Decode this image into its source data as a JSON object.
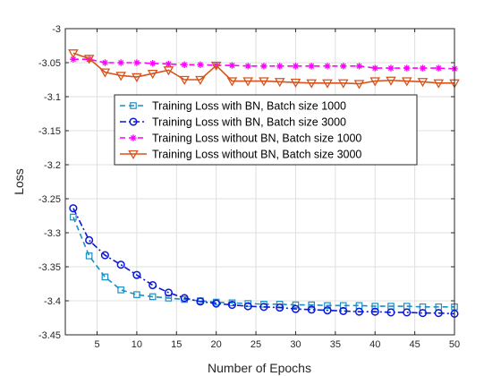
{
  "chart_data": {
    "type": "line",
    "title": "",
    "xlabel": "Number of Epochs",
    "ylabel": "Loss",
    "xlim": [
      1,
      50
    ],
    "ylim": [
      -3.45,
      -3.0
    ],
    "xticks": [
      5,
      10,
      15,
      20,
      25,
      30,
      35,
      40,
      45,
      50
    ],
    "xtick_labels": [
      "5",
      "10",
      "15",
      "20",
      "25",
      "30",
      "35",
      "40",
      "45",
      "50"
    ],
    "yticks": [
      -3.0,
      -3.05,
      -3.1,
      -3.15,
      -3.2,
      -3.25,
      -3.3,
      -3.35,
      -3.4,
      -3.45
    ],
    "ytick_labels": [
      "-3",
      "-3.05",
      "-3.1",
      "-3.15",
      "-3.2",
      "-3.25",
      "-3.3",
      "-3.35",
      "-3.4",
      "-3.45"
    ],
    "grid": true,
    "legend_position": "center",
    "x": [
      2,
      4,
      6,
      8,
      10,
      12,
      14,
      16,
      18,
      20,
      22,
      24,
      26,
      28,
      30,
      32,
      34,
      36,
      38,
      40,
      42,
      44,
      46,
      48,
      50
    ],
    "series": [
      {
        "name": "Training Loss with BN, Batch size 1000",
        "color": "#1b8fc4",
        "line_style": "dashed",
        "marker": "square",
        "values": [
          -3.277,
          -3.334,
          -3.365,
          -3.384,
          -3.391,
          -3.394,
          -3.396,
          -3.398,
          -3.4,
          -3.402,
          -3.403,
          -3.404,
          -3.405,
          -3.405,
          -3.406,
          -3.406,
          -3.407,
          -3.407,
          -3.407,
          -3.408,
          -3.408,
          -3.408,
          -3.409,
          -3.409,
          -3.409
        ]
      },
      {
        "name": "Training Loss with BN, Batch size 3000",
        "color": "#0a18d8",
        "line_style": "dashdot",
        "marker": "circle",
        "values": [
          -3.264,
          -3.311,
          -3.333,
          -3.347,
          -3.362,
          -3.377,
          -3.388,
          -3.396,
          -3.401,
          -3.404,
          -3.406,
          -3.408,
          -3.409,
          -3.41,
          -3.412,
          -3.413,
          -3.414,
          -3.415,
          -3.416,
          -3.416,
          -3.417,
          -3.417,
          -3.418,
          -3.418,
          -3.419
        ]
      },
      {
        "name": "Training Loss without BN, Batch size 1000",
        "color": "#ff00ff",
        "line_style": "dashed",
        "marker": "asterisk",
        "values": [
          -3.045,
          -3.045,
          -3.05,
          -3.05,
          -3.05,
          -3.051,
          -3.052,
          -3.053,
          -3.053,
          -3.054,
          -3.054,
          -3.055,
          -3.055,
          -3.055,
          -3.055,
          -3.055,
          -3.055,
          -3.055,
          -3.055,
          -3.058,
          -3.058,
          -3.058,
          -3.058,
          -3.058,
          -3.059
        ]
      },
      {
        "name": "Training Loss without BN, Batch size 3000",
        "color": "#d8531b",
        "line_style": "solid",
        "marker": "triangle-down",
        "values": [
          -3.036,
          -3.044,
          -3.064,
          -3.069,
          -3.071,
          -3.066,
          -3.061,
          -3.075,
          -3.075,
          -3.054,
          -3.077,
          -3.077,
          -3.077,
          -3.078,
          -3.079,
          -3.08,
          -3.08,
          -3.08,
          -3.081,
          -3.077,
          -3.076,
          -3.077,
          -3.078,
          -3.08,
          -3.08
        ]
      }
    ]
  }
}
